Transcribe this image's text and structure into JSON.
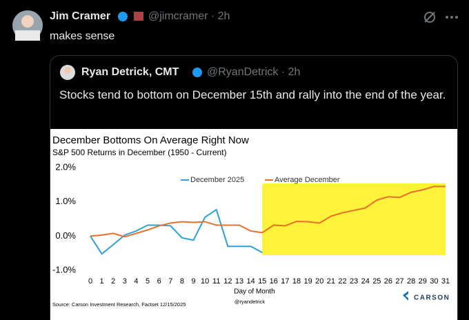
{
  "post": {
    "author": "Jim Cramer",
    "handle": "@jimcramer · 2h",
    "text": "makes sense"
  },
  "quote": {
    "author": "Ryan Detrick, CMT",
    "handle": "@RyanDetrick · 2h",
    "text": "Stocks tend to bottom on December 15th and rally into the end of the year."
  },
  "chart_data": {
    "type": "line",
    "title": "December Bottoms On Average Right Now",
    "subtitle": "S&P 500 Returns in December (1950 - Current)",
    "x_label": "Day of Month",
    "source": "Source: Carson Investment Research, Factset 12/15/2025",
    "credit": "@ryandetrick",
    "brand": "CARSON",
    "x": [
      0,
      1,
      2,
      3,
      4,
      5,
      6,
      7,
      8,
      9,
      10,
      11,
      12,
      13,
      14,
      15,
      16,
      17,
      18,
      19,
      20,
      21,
      22,
      23,
      24,
      25,
      26,
      27,
      28,
      29,
      30,
      31
    ],
    "xlim": [
      0,
      31
    ],
    "xticks": [
      0,
      1,
      2,
      3,
      4,
      5,
      6,
      7,
      8,
      9,
      10,
      11,
      12,
      13,
      14,
      15,
      16,
      17,
      18,
      19,
      20,
      21,
      22,
      23,
      24,
      25,
      26,
      27,
      28,
      29,
      30,
      31
    ],
    "ylim": [
      -1,
      2
    ],
    "yticks": [
      {
        "value": -1,
        "label": "-1.0%"
      },
      {
        "value": 0,
        "label": "0.0%"
      },
      {
        "value": 1,
        "label": "1.0%"
      },
      {
        "value": 2,
        "label": "2.0%"
      }
    ],
    "legend": "top",
    "highlight_x": [
      15,
      31
    ],
    "highlight_color": "#fff23a",
    "series": [
      {
        "name": "December 2025",
        "color": "#2b9fd8",
        "values": [
          0,
          -0.52,
          -0.25,
          0.03,
          0.15,
          0.32,
          0.32,
          0.3,
          -0.05,
          -0.12,
          0.55,
          0.77,
          -0.3,
          -0.3,
          -0.3,
          -0.48,
          null,
          null,
          null,
          null,
          null,
          null,
          null,
          null,
          null,
          null,
          null,
          null,
          null,
          null,
          null,
          null
        ]
      },
      {
        "name": "Average December",
        "color": "#e8702a",
        "values": [
          0,
          0.03,
          0.08,
          -0.02,
          0.08,
          0.18,
          0.3,
          0.38,
          0.42,
          0.4,
          0.42,
          0.32,
          0.32,
          0.32,
          0.15,
          0.1,
          0.32,
          0.3,
          0.43,
          0.42,
          0.38,
          0.58,
          0.68,
          0.75,
          0.82,
          1.05,
          1.15,
          1.13,
          1.28,
          1.35,
          1.45,
          1.45
        ]
      }
    ]
  }
}
